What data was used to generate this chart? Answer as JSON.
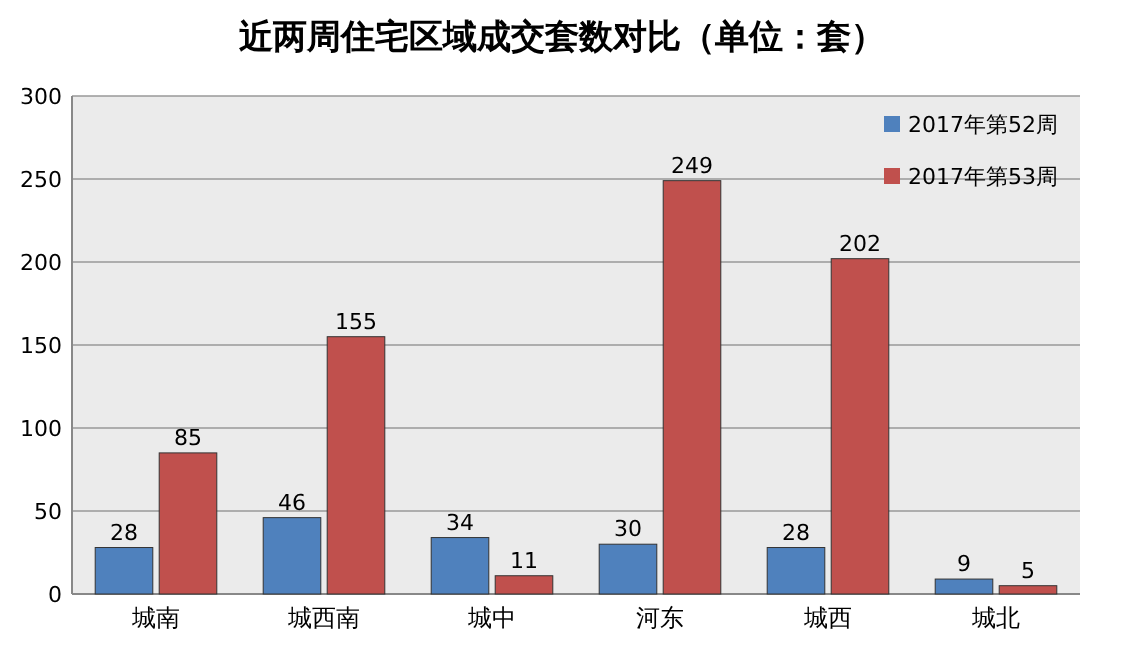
{
  "chart_data": {
    "type": "bar",
    "title": "近两周住宅区域成交套数对比（单位：套）",
    "categories": [
      "城南",
      "城西南",
      "城中",
      "河东",
      "城西",
      "城北"
    ],
    "series": [
      {
        "name": "2017年第52周",
        "color": "#4f81bd",
        "values": [
          28,
          46,
          34,
          30,
          28,
          9
        ]
      },
      {
        "name": "2017年第53周",
        "color": "#c0504d",
        "values": [
          85,
          155,
          11,
          249,
          202,
          5
        ]
      }
    ],
    "ylim": [
      0,
      300
    ],
    "yticks": [
      0,
      50,
      100,
      150,
      200,
      250,
      300
    ],
    "grid": "y",
    "legend": "top right",
    "data_labels": true
  }
}
